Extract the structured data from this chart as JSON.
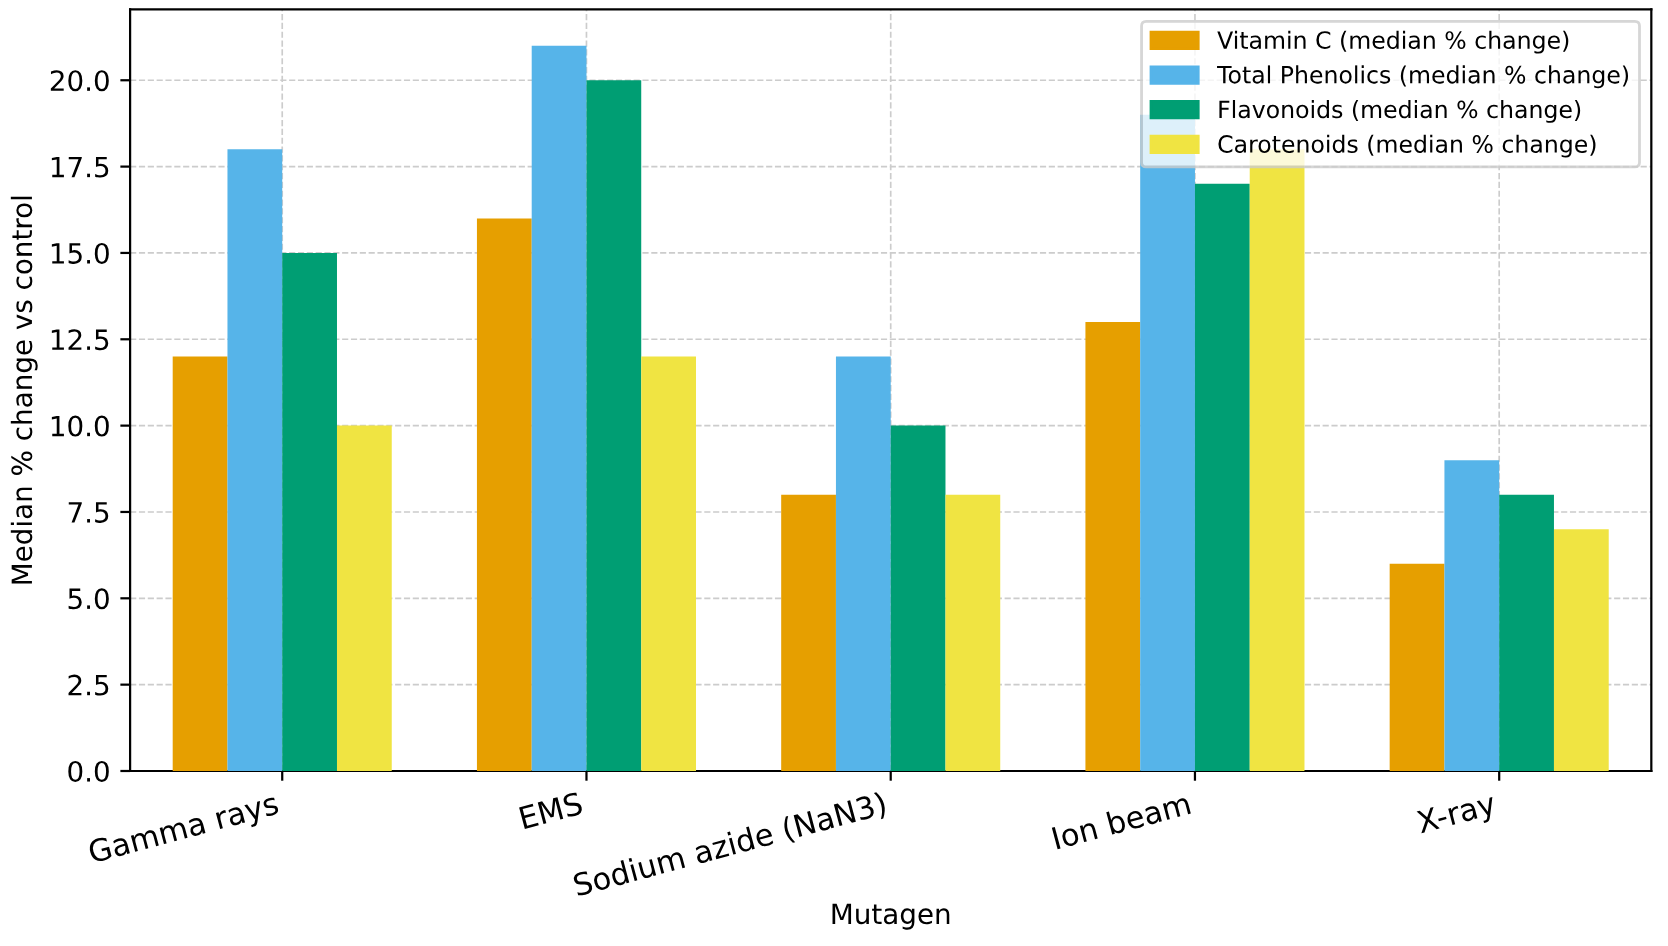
{
  "chart_data": {
    "type": "bar",
    "xlabel": "Mutagen",
    "ylabel": "Median % change vs control",
    "categories": [
      "Gamma rays",
      "EMS",
      "Sodium azide (NaN3)",
      "Ion beam",
      "X-ray"
    ],
    "series": [
      {
        "name": "Vitamin C (median % change)",
        "color": "#e69f00",
        "values": [
          12,
          16,
          8,
          13,
          6
        ]
      },
      {
        "name": "Total Phenolics (median % change)",
        "color": "#56b4e9",
        "values": [
          18,
          21,
          12,
          19,
          9
        ]
      },
      {
        "name": "Flavonoids (median % change)",
        "color": "#009e73",
        "values": [
          15,
          20,
          10,
          17,
          8
        ]
      },
      {
        "name": "Carotenoids (median % change)",
        "color": "#f0e442",
        "values": [
          10,
          12,
          8,
          18,
          7
        ]
      }
    ],
    "ylim": [
      0,
      22.05
    ],
    "yticks": [
      {
        "value": 0,
        "label": "0.0"
      },
      2.5,
      {
        "value": 5,
        "label": "5.0"
      },
      7.5,
      {
        "value": 10,
        "label": "10.0"
      },
      12.5,
      {
        "value": 15,
        "label": "15.0"
      },
      17.5,
      {
        "value": 20,
        "label": "20.0"
      }
    ],
    "grid": true,
    "legend": "top right"
  }
}
